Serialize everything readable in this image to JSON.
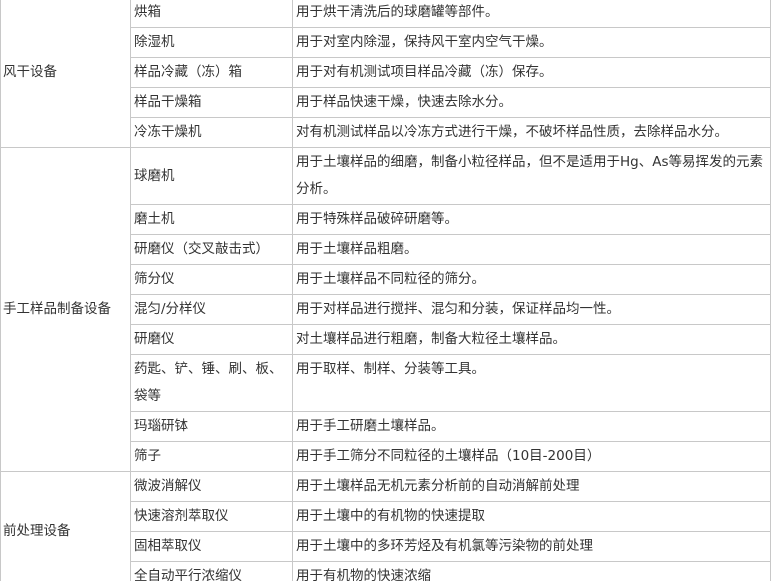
{
  "table": {
    "groups": [
      {
        "name": "风干设备",
        "rows": [
          {
            "equipment": "烘箱",
            "use": "用于烘干清洗后的球磨罐等部件。"
          },
          {
            "equipment": "除湿机",
            "use": "用于对室内除湿，保持风干室内空气干燥。"
          },
          {
            "equipment": "样品冷藏（冻）箱",
            "use": "用于对有机测试项目样品冷藏（冻）保存。"
          },
          {
            "equipment": "样品干燥箱",
            "use": "用于样品快速干燥，快速去除水分。"
          },
          {
            "equipment": "冷冻干燥机",
            "use": "对有机测试样品以冷冻方式进行干燥，不破坏样品性质，去除样品水分。"
          }
        ]
      },
      {
        "name": "手工样品制备设备",
        "rows": [
          {
            "equipment": "球磨机",
            "use": "用于土壤样品的细磨，制备小粒径样品，但不是适用于Hg、As等易挥发的元素分析。"
          },
          {
            "equipment": "磨土机",
            "use": "用于特殊样品破碎研磨等。"
          },
          {
            "equipment": "研磨仪（交叉敲击式）",
            "use": "用于土壤样品粗磨。"
          },
          {
            "equipment": "筛分仪",
            "use": "用于土壤样品不同粒径的筛分。"
          },
          {
            "equipment": "混匀/分样仪",
            "use": "用于对样品进行搅拌、混匀和分装，保证样品均一性。"
          },
          {
            "equipment": "研磨仪",
            "use": "对土壤样品进行粗磨，制备大粒径土壤样品。"
          },
          {
            "equipment": "药匙、铲、锤、刷、板、袋等",
            "use": "用于取样、制样、分装等工具。"
          },
          {
            "equipment": "玛瑙研钵",
            "use": "用于手工研磨土壤样品。"
          },
          {
            "equipment": "筛子",
            "use": "用于手工筛分不同粒径的土壤样品（10目-200目）"
          }
        ]
      },
      {
        "name": "前处理设备",
        "rows": [
          {
            "equipment": "微波消解仪",
            "use": "用于土壤样品无机元素分析前的自动消解前处理"
          },
          {
            "equipment": "快速溶剂萃取仪",
            "use": "用于土壤中的有机物的快速提取"
          },
          {
            "equipment": "固相萃取仪",
            "use": "用于土壤中的多环芳烃及有机氯等污染物的前处理"
          },
          {
            "equipment": "全自动平行浓缩仪",
            "use": "用于有机物的快速浓缩"
          }
        ]
      }
    ]
  }
}
